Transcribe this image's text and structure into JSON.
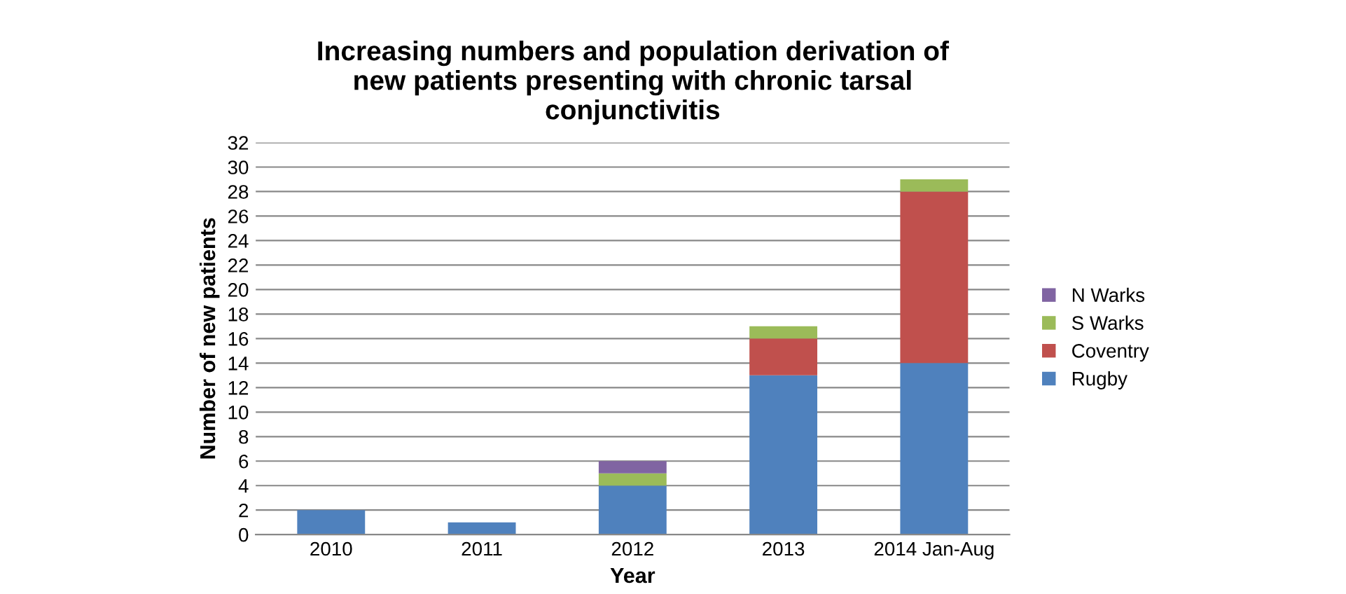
{
  "chart_data": {
    "type": "bar",
    "stacked": true,
    "title": "Increasing numbers and population derivation of\nnew patients presenting with chronic tarsal\nconjunctivitis",
    "xlabel": "Year",
    "ylabel": "Number of new patients",
    "categories": [
      "2010",
      "2011",
      "2012",
      "2013",
      "2014 Jan-Aug"
    ],
    "series": [
      {
        "name": "Rugby",
        "color": "#4f81bd",
        "values": [
          2,
          1,
          4,
          13,
          14
        ]
      },
      {
        "name": "Coventry",
        "color": "#c0504d",
        "values": [
          0,
          0,
          0,
          3,
          14
        ]
      },
      {
        "name": "S Warks",
        "color": "#9bbb59",
        "values": [
          0,
          0,
          1,
          1,
          1
        ]
      },
      {
        "name": "N Warks",
        "color": "#8064a2",
        "values": [
          0,
          0,
          1,
          0,
          0
        ]
      }
    ],
    "ylim": [
      0,
      32
    ],
    "yticks": [
      0,
      2,
      4,
      6,
      8,
      10,
      12,
      14,
      16,
      18,
      20,
      22,
      24,
      26,
      28,
      30,
      32
    ],
    "grid": "y",
    "legend": "right"
  }
}
